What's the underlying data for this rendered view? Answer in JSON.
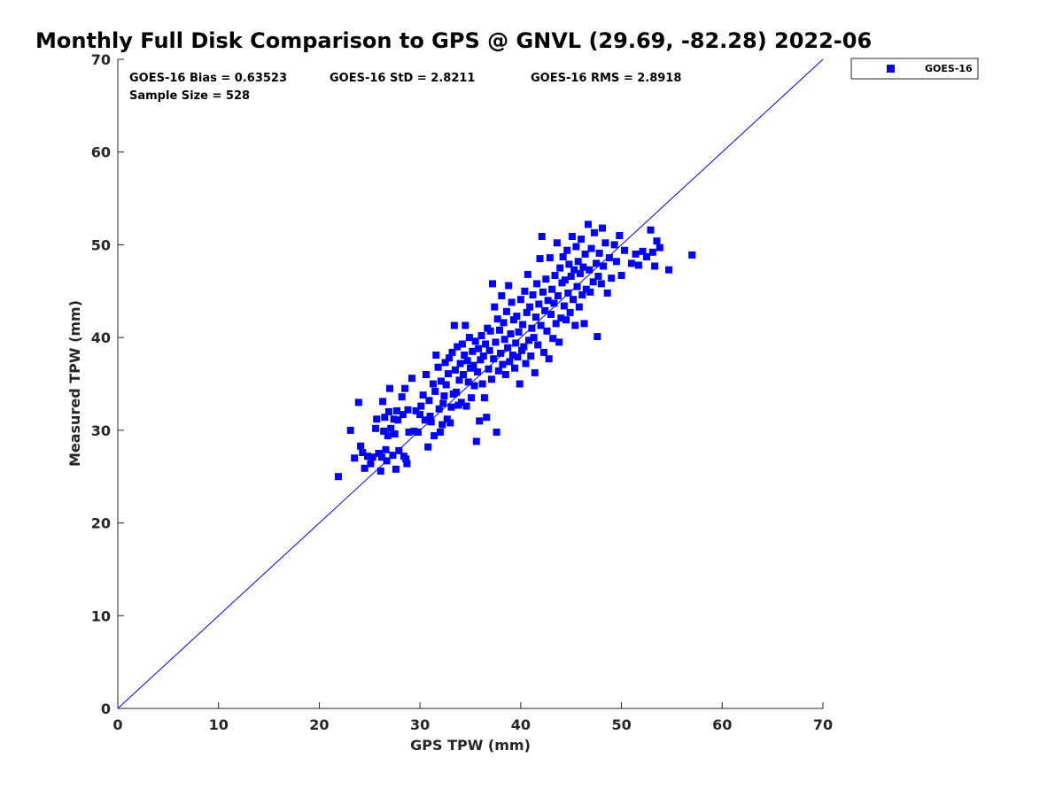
{
  "chart_data": {
    "type": "scatter",
    "title": "Monthly Full Disk Comparison to GPS @ GNVL (29.69, -82.28) 2022-06",
    "xlabel": "GPS TPW (mm)",
    "ylabel": "Measured TPW (mm)",
    "xlim": [
      0,
      70
    ],
    "ylim": [
      0,
      70
    ],
    "xticks": [
      "0",
      "10",
      "20",
      "30",
      "40",
      "50",
      "60",
      "70"
    ],
    "yticks": [
      "0",
      "10",
      "20",
      "30",
      "40",
      "50",
      "60",
      "70"
    ],
    "grid": false,
    "legend_position": "top-right outside",
    "marker_color": "#0000ff",
    "reference_line": {
      "x": [
        0,
        70
      ],
      "y": [
        0,
        70
      ]
    },
    "annotations": {
      "bias": "GOES-16 Bias = 0.63523",
      "std": "GOES-16 StD = 2.8211",
      "rms": "GOES-16 RMS = 2.8918",
      "sample_size": "Sample Size = 528"
    },
    "series": [
      {
        "name": "GOES-16",
        "marker": "square",
        "color": "#0000ff",
        "points": [
          [
            21.9,
            25.0
          ],
          [
            23.1,
            30.0
          ],
          [
            23.5,
            27.0
          ],
          [
            23.9,
            33.0
          ],
          [
            24.1,
            28.3
          ],
          [
            24.3,
            27.6
          ],
          [
            24.5,
            25.9
          ],
          [
            24.8,
            27.2
          ],
          [
            25.1,
            26.4
          ],
          [
            25.3,
            27.1
          ],
          [
            25.6,
            30.2
          ],
          [
            25.7,
            31.2
          ],
          [
            25.9,
            27.5
          ],
          [
            26.1,
            25.6
          ],
          [
            26.2,
            27.1
          ],
          [
            26.3,
            33.1
          ],
          [
            26.4,
            29.9
          ],
          [
            26.5,
            31.4
          ],
          [
            26.6,
            27.9
          ],
          [
            26.7,
            26.7
          ],
          [
            26.8,
            29.4
          ],
          [
            26.9,
            32.0
          ],
          [
            27.0,
            34.5
          ],
          [
            27.1,
            30.2
          ],
          [
            27.3,
            27.3
          ],
          [
            27.4,
            31.2
          ],
          [
            27.5,
            29.6
          ],
          [
            27.6,
            25.8
          ],
          [
            27.7,
            32.1
          ],
          [
            27.8,
            31.1
          ],
          [
            27.9,
            27.8
          ],
          [
            28.2,
            33.6
          ],
          [
            28.3,
            31.7
          ],
          [
            28.4,
            27.2
          ],
          [
            28.5,
            34.5
          ],
          [
            28.6,
            26.9
          ],
          [
            28.7,
            26.4
          ],
          [
            28.8,
            32.2
          ],
          [
            28.9,
            29.8
          ],
          [
            29.2,
            35.6
          ],
          [
            29.4,
            29.9
          ],
          [
            29.6,
            32.1
          ],
          [
            29.8,
            29.8
          ],
          [
            30.0,
            31.7
          ],
          [
            30.1,
            32.6
          ],
          [
            30.3,
            33.8
          ],
          [
            30.5,
            31.1
          ],
          [
            30.6,
            36.0
          ],
          [
            30.8,
            28.2
          ],
          [
            30.9,
            33.2
          ],
          [
            31.0,
            31.5
          ],
          [
            31.1,
            30.9
          ],
          [
            31.3,
            35.0
          ],
          [
            31.4,
            29.4
          ],
          [
            31.5,
            34.2
          ],
          [
            31.6,
            38.1
          ],
          [
            31.8,
            36.8
          ],
          [
            31.9,
            32.3
          ],
          [
            32.0,
            29.8
          ],
          [
            32.1,
            35.3
          ],
          [
            32.2,
            30.6
          ],
          [
            32.3,
            32.9
          ],
          [
            32.4,
            33.7
          ],
          [
            32.5,
            37.3
          ],
          [
            32.6,
            34.9
          ],
          [
            32.7,
            31.2
          ],
          [
            32.8,
            36.1
          ],
          [
            32.9,
            37.8
          ],
          [
            33.0,
            30.8
          ],
          [
            33.1,
            32.5
          ],
          [
            33.2,
            38.4
          ],
          [
            33.3,
            33.9
          ],
          [
            33.4,
            41.3
          ],
          [
            33.5,
            36.5
          ],
          [
            33.6,
            34.1
          ],
          [
            33.7,
            39.0
          ],
          [
            33.8,
            32.7
          ],
          [
            33.9,
            35.4
          ],
          [
            34.0,
            37.2
          ],
          [
            34.1,
            33.0
          ],
          [
            34.2,
            39.3
          ],
          [
            34.3,
            36.0
          ],
          [
            34.4,
            38.1
          ],
          [
            34.5,
            41.3
          ],
          [
            34.6,
            32.6
          ],
          [
            34.7,
            37.5
          ],
          [
            34.8,
            35.2
          ],
          [
            34.9,
            40.0
          ],
          [
            35.0,
            36.7
          ],
          [
            35.1,
            33.5
          ],
          [
            35.2,
            38.5
          ],
          [
            35.3,
            37.0
          ],
          [
            35.4,
            34.8
          ],
          [
            35.5,
            39.6
          ],
          [
            35.6,
            28.8
          ],
          [
            35.7,
            36.3
          ],
          [
            35.8,
            38.8
          ],
          [
            35.9,
            31.0
          ],
          [
            36.0,
            37.6
          ],
          [
            36.1,
            40.2
          ],
          [
            36.2,
            35.0
          ],
          [
            36.3,
            38.0
          ],
          [
            36.4,
            33.5
          ],
          [
            36.5,
            39.3
          ],
          [
            36.6,
            31.4
          ],
          [
            36.7,
            41.0
          ],
          [
            36.8,
            36.6
          ],
          [
            36.9,
            38.6
          ],
          [
            37.0,
            40.7
          ],
          [
            37.1,
            35.5
          ],
          [
            37.2,
            45.8
          ],
          [
            37.3,
            37.7
          ],
          [
            37.4,
            43.3
          ],
          [
            37.5,
            39.5
          ],
          [
            37.6,
            29.8
          ],
          [
            37.7,
            42.0
          ],
          [
            37.8,
            36.4
          ],
          [
            37.9,
            40.8
          ],
          [
            38.0,
            38.3
          ],
          [
            38.1,
            44.5
          ],
          [
            38.2,
            37.1
          ],
          [
            38.3,
            41.6
          ],
          [
            38.4,
            39.8
          ],
          [
            38.5,
            36.0
          ],
          [
            38.6,
            42.8
          ],
          [
            38.7,
            38.9
          ],
          [
            38.8,
            45.6
          ],
          [
            38.9,
            37.4
          ],
          [
            39.0,
            40.4
          ],
          [
            39.1,
            43.8
          ],
          [
            39.2,
            38.1
          ],
          [
            39.3,
            41.9
          ],
          [
            39.4,
            36.7
          ],
          [
            39.5,
            39.4
          ],
          [
            39.6,
            42.3
          ],
          [
            39.7,
            37.9
          ],
          [
            39.8,
            40.6
          ],
          [
            39.9,
            35.0
          ],
          [
            40.0,
            44.1
          ],
          [
            40.1,
            38.6
          ],
          [
            40.2,
            41.4
          ],
          [
            40.3,
            39.0
          ],
          [
            40.4,
            45.0
          ],
          [
            40.5,
            37.2
          ],
          [
            40.6,
            42.7
          ],
          [
            40.7,
            46.8
          ],
          [
            40.8,
            39.7
          ],
          [
            40.9,
            43.3
          ],
          [
            41.0,
            38.0
          ],
          [
            41.1,
            41.0
          ],
          [
            41.2,
            44.6
          ],
          [
            41.3,
            40.0
          ],
          [
            41.4,
            36.2
          ],
          [
            41.5,
            42.2
          ],
          [
            41.6,
            45.8
          ],
          [
            41.7,
            39.2
          ],
          [
            41.8,
            43.6
          ],
          [
            41.9,
            48.5
          ],
          [
            42.0,
            41.3
          ],
          [
            42.1,
            50.9
          ],
          [
            42.2,
            44.9
          ],
          [
            42.3,
            38.4
          ],
          [
            42.4,
            42.9
          ],
          [
            42.5,
            46.3
          ],
          [
            42.6,
            40.7
          ],
          [
            42.7,
            44.0
          ],
          [
            42.8,
            37.7
          ],
          [
            42.9,
            48.6
          ],
          [
            43.0,
            42.5
          ],
          [
            43.1,
            45.2
          ],
          [
            43.2,
            39.9
          ],
          [
            43.3,
            43.7
          ],
          [
            43.4,
            46.7
          ],
          [
            43.5,
            41.5
          ],
          [
            43.6,
            50.2
          ],
          [
            43.7,
            44.5
          ],
          [
            43.8,
            39.5
          ],
          [
            43.9,
            47.5
          ],
          [
            44.0,
            42.1
          ],
          [
            44.1,
            45.9
          ],
          [
            44.2,
            48.7
          ],
          [
            44.3,
            43.4
          ],
          [
            44.4,
            46.2
          ],
          [
            44.5,
            41.9
          ],
          [
            44.6,
            49.4
          ],
          [
            44.7,
            44.8
          ],
          [
            44.8,
            47.9
          ],
          [
            44.9,
            42.7
          ],
          [
            45.0,
            46.6
          ],
          [
            45.1,
            50.9
          ],
          [
            45.2,
            44.1
          ],
          [
            45.3,
            47.3
          ],
          [
            45.4,
            41.3
          ],
          [
            45.5,
            49.8
          ],
          [
            45.6,
            45.5
          ],
          [
            45.7,
            48.2
          ],
          [
            45.8,
            43.3
          ],
          [
            45.9,
            46.9
          ],
          [
            46.0,
            50.6
          ],
          [
            46.1,
            44.6
          ],
          [
            46.2,
            47.6
          ],
          [
            46.3,
            41.5
          ],
          [
            46.4,
            49.0
          ],
          [
            46.5,
            45.2
          ],
          [
            46.7,
            52.2
          ],
          [
            46.8,
            47.3
          ],
          [
            46.9,
            44.9
          ],
          [
            47.0,
            49.6
          ],
          [
            47.2,
            46.0
          ],
          [
            47.3,
            51.3
          ],
          [
            47.5,
            48.0
          ],
          [
            47.6,
            40.1
          ],
          [
            47.7,
            46.6
          ],
          [
            47.8,
            49.1
          ],
          [
            48.0,
            45.8
          ],
          [
            48.1,
            51.8
          ],
          [
            48.2,
            47.7
          ],
          [
            48.4,
            50.2
          ],
          [
            48.6,
            44.8
          ],
          [
            48.8,
            48.6
          ],
          [
            49.0,
            46.4
          ],
          [
            49.3,
            50.0
          ],
          [
            49.5,
            48.2
          ],
          [
            49.8,
            51.0
          ],
          [
            50.0,
            46.7
          ],
          [
            50.3,
            49.4
          ],
          [
            51.0,
            48.0
          ],
          [
            51.4,
            49.0
          ],
          [
            51.7,
            47.8
          ],
          [
            52.1,
            49.3
          ],
          [
            52.5,
            48.7
          ],
          [
            52.9,
            51.6
          ],
          [
            53.1,
            49.2
          ],
          [
            53.3,
            47.7
          ],
          [
            53.5,
            50.4
          ],
          [
            53.8,
            49.7
          ],
          [
            54.7,
            47.3
          ],
          [
            57.0,
            48.9
          ]
        ]
      }
    ]
  }
}
